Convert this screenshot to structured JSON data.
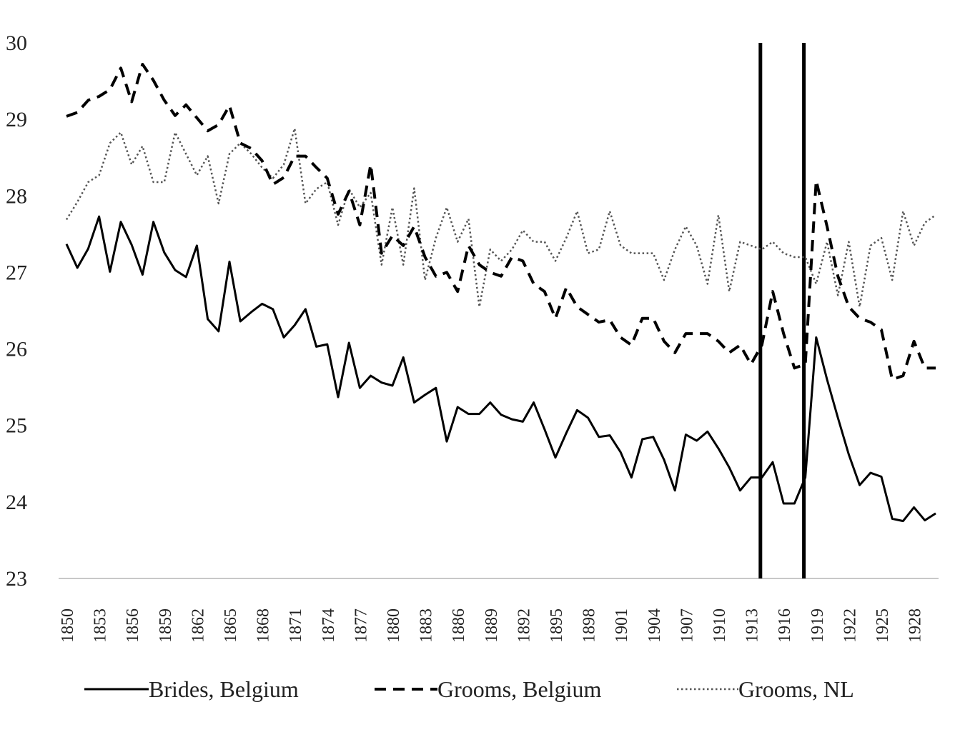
{
  "chart_data": {
    "type": "line",
    "title": "",
    "xlabel": "",
    "ylabel": "",
    "ylim": [
      23,
      30
    ],
    "yticks": [
      23,
      24,
      25,
      26,
      27,
      28,
      29,
      30
    ],
    "xlim": [
      1850,
      1930
    ],
    "xtick_labels": [
      "1850",
      "1853",
      "1856",
      "1859",
      "1862",
      "1865",
      "1868",
      "1871",
      "1874",
      "1877",
      "1880",
      "1883",
      "1886",
      "1889",
      "1892",
      "1895",
      "1898",
      "1901",
      "1904",
      "1907",
      "1910",
      "1913",
      "1916",
      "1919",
      "1922",
      "1925",
      "1928"
    ],
    "grid": false,
    "legend_position": "bottom",
    "vertical_markers": [
      1914,
      1918
    ],
    "x": [
      1850,
      1851,
      1852,
      1853,
      1854,
      1855,
      1856,
      1857,
      1858,
      1859,
      1860,
      1861,
      1862,
      1863,
      1864,
      1865,
      1866,
      1867,
      1868,
      1869,
      1870,
      1871,
      1872,
      1873,
      1874,
      1875,
      1876,
      1877,
      1878,
      1879,
      1880,
      1881,
      1882,
      1883,
      1884,
      1885,
      1886,
      1887,
      1888,
      1889,
      1890,
      1891,
      1892,
      1893,
      1894,
      1895,
      1896,
      1897,
      1898,
      1899,
      1900,
      1901,
      1902,
      1903,
      1904,
      1905,
      1906,
      1907,
      1908,
      1909,
      1910,
      1911,
      1912,
      1913,
      1914,
      1915,
      1916,
      1917,
      1918,
      1919,
      1920,
      1921,
      1922,
      1923,
      1924,
      1925,
      1926,
      1927,
      1928,
      1929,
      1930
    ],
    "series": [
      {
        "name": "Brides, Belgium",
        "style": "solid",
        "values": [
          27.37,
          27.06,
          27.31,
          27.73,
          27.01,
          27.66,
          27.36,
          26.97,
          27.66,
          27.26,
          27.03,
          26.94,
          27.35,
          26.39,
          26.23,
          27.14,
          26.36,
          26.48,
          26.59,
          26.52,
          26.15,
          26.31,
          26.52,
          26.03,
          26.06,
          25.37,
          26.08,
          25.49,
          25.65,
          25.56,
          25.52,
          25.89,
          25.3,
          25.4,
          25.49,
          24.79,
          25.24,
          25.15,
          25.15,
          25.3,
          25.14,
          25.08,
          25.05,
          25.3,
          24.95,
          24.58,
          24.9,
          25.2,
          25.1,
          24.85,
          24.87,
          24.65,
          24.32,
          24.82,
          24.85,
          24.55,
          24.15,
          24.88,
          24.8,
          24.92,
          24.7,
          24.45,
          24.15,
          24.32,
          24.32,
          24.52,
          23.98,
          23.98,
          24.32,
          26.15,
          25.6,
          25.1,
          24.62,
          24.22,
          24.38,
          24.33,
          23.78,
          23.75,
          23.93,
          23.76,
          23.85
        ]
      },
      {
        "name": "Grooms, Belgium",
        "style": "dashed",
        "values": [
          29.04,
          29.09,
          29.25,
          29.3,
          29.39,
          29.67,
          29.23,
          29.72,
          29.51,
          29.25,
          29.05,
          29.19,
          29.02,
          28.85,
          28.93,
          29.18,
          28.69,
          28.62,
          28.46,
          28.15,
          28.24,
          28.52,
          28.52,
          28.37,
          28.23,
          27.76,
          28.06,
          27.62,
          28.41,
          27.25,
          27.48,
          27.35,
          27.6,
          27.2,
          26.95,
          27.0,
          26.75,
          27.35,
          27.1,
          27.0,
          26.95,
          27.2,
          27.15,
          26.85,
          26.75,
          26.4,
          26.8,
          26.55,
          26.45,
          26.35,
          26.38,
          26.15,
          26.05,
          26.4,
          26.4,
          26.1,
          25.95,
          26.2,
          26.2,
          26.2,
          26.1,
          25.95,
          26.05,
          25.8,
          26.05,
          26.75,
          26.2,
          25.75,
          25.8,
          28.2,
          27.6,
          26.95,
          26.55,
          26.4,
          26.35,
          26.25,
          25.6,
          25.65,
          26.1,
          25.75,
          25.75
        ]
      },
      {
        "name": "Grooms, NL",
        "style": "dotted",
        "values": [
          27.69,
          27.92,
          28.18,
          28.27,
          28.69,
          28.83,
          28.41,
          28.65,
          28.18,
          28.18,
          28.83,
          28.55,
          28.27,
          28.52,
          27.9,
          28.55,
          28.69,
          28.55,
          28.37,
          28.23,
          28.41,
          28.88,
          27.9,
          28.09,
          28.18,
          27.62,
          28.09,
          27.85,
          28.04,
          27.1,
          27.85,
          27.1,
          28.1,
          26.9,
          27.45,
          27.85,
          27.4,
          27.7,
          26.55,
          27.3,
          27.15,
          27.3,
          27.55,
          27.4,
          27.4,
          27.15,
          27.45,
          27.8,
          27.25,
          27.3,
          27.8,
          27.35,
          27.25,
          27.25,
          27.25,
          26.9,
          27.3,
          27.6,
          27.35,
          26.85,
          27.75,
          26.75,
          27.4,
          27.35,
          27.3,
          27.4,
          27.25,
          27.2,
          27.2,
          26.85,
          27.4,
          26.7,
          27.4,
          26.55,
          27.35,
          27.45,
          26.9,
          27.8,
          27.35,
          27.65,
          27.75
        ]
      }
    ]
  },
  "legend": {
    "items": [
      {
        "label": "Brides, Belgium"
      },
      {
        "label": "Grooms, Belgium"
      },
      {
        "label": "Grooms, NL"
      }
    ]
  }
}
